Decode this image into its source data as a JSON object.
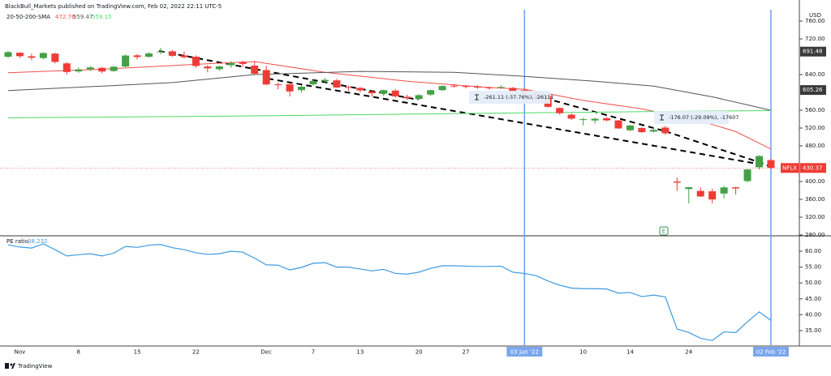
{
  "attribution": "BlackBull_Markets published on TradingView.com, Feb 02, 2022 22:11 UTC-5",
  "brand": "TradingView",
  "chart_data": [
    {
      "type": "candlestick",
      "symbol": "NFLX",
      "y_axis_unit": "USD",
      "indicator": "20-50-200-SMA",
      "categories": [
        null,
        "Nov",
        null,
        null,
        null,
        null,
        "8",
        null,
        null,
        null,
        null,
        "15",
        null,
        null,
        null,
        null,
        "22",
        null,
        null,
        null,
        null,
        null,
        "Dec",
        null,
        null,
        null,
        "7",
        null,
        null,
        null,
        "13",
        null,
        null,
        null,
        null,
        "20",
        null,
        null,
        null,
        "27",
        null,
        null,
        null,
        null,
        "03 Jan '22",
        null,
        null,
        null,
        null,
        "10",
        null,
        null,
        null,
        "14",
        null,
        null,
        null,
        null,
        "24",
        null,
        null,
        null,
        null,
        null,
        null,
        "02 Feb '22"
      ],
      "open": [
        680,
        689,
        681,
        677,
        687,
        665,
        647,
        652,
        655,
        648,
        658,
        683,
        680,
        690,
        692,
        683,
        680,
        658,
        652,
        661,
        668,
        660,
        650,
        618,
        618,
        605,
        618,
        625,
        627,
        612,
        610,
        602,
        597,
        604,
        590,
        585,
        595,
        605,
        615,
        614,
        613,
        611,
        611,
        610,
        605,
        599,
        592,
        565,
        550,
        538,
        537,
        542,
        537,
        515,
        520,
        512,
        521,
        400,
        383,
        379,
        378,
        373,
        387,
        401,
        432,
        448
      ],
      "high": [
        693,
        690,
        687,
        690,
        689,
        668,
        656,
        659,
        657,
        659,
        685,
        686,
        690,
        700,
        695,
        692,
        683,
        661,
        660,
        670,
        671,
        670,
        660,
        622,
        621,
        616,
        630,
        632,
        630,
        615,
        612,
        605,
        606,
        607,
        595,
        596,
        606,
        616,
        618,
        616,
        616,
        613,
        616,
        612,
        609,
        600,
        593,
        566,
        553,
        543,
        543,
        544,
        538,
        527,
        522,
        521,
        525,
        409,
        388,
        387,
        384,
        390,
        388,
        428,
        459,
        451
      ],
      "low": [
        677,
        677,
        672,
        674,
        665,
        640,
        644,
        648,
        643,
        646,
        656,
        674,
        678,
        686,
        680,
        676,
        655,
        645,
        648,
        655,
        657,
        640,
        616,
        607,
        591,
        599,
        615,
        620,
        610,
        603,
        600,
        590,
        592,
        588,
        583,
        582,
        592,
        603,
        611,
        609,
        608,
        606,
        608,
        600,
        592,
        581,
        566,
        550,
        538,
        526,
        530,
        535,
        518,
        513,
        509,
        510,
        505,
        379,
        351,
        365,
        351,
        362,
        371,
        398,
        427,
        428
      ],
      "close": [
        690.31,
        681.17,
        677.72,
        688.29,
        668.4,
        645.72,
        651.45,
        655.99,
        646.91,
        657.58,
        682.61,
        679.33,
        687.4,
        691.69,
        682.02,
        678.8,
        659.2,
        654.06,
        658.29,
        665.64,
        663.84,
        641.9,
        617.77,
        616.47,
        602.13,
        612.69,
        625.58,
        628.08,
        611.0,
        611.66,
        604.56,
        597.99,
        605.04,
        591.06,
        586.73,
        593.74,
        604.92,
        614.24,
        614.09,
        613.12,
        610.71,
        610.54,
        612.09,
        602.44,
        597.37,
        591.15,
        567.52,
        553.29,
        541.06,
        539.85,
        540.84,
        537.22,
        519.2,
        525.69,
        510.8,
        515.86,
        508.25,
        397.5,
        387.15,
        366.42,
        359.7,
        386.7,
        384.36,
        427.14,
        457.13,
        430.37
      ],
      "up_color": "#43a047",
      "down_color": "#ef3b36",
      "series": [
        {
          "color": "#f0504a",
          "x": [
            0,
            8,
            16,
            21,
            27,
            34,
            41,
            44,
            49,
            54,
            59,
            62,
            65
          ],
          "values": [
            644,
            652,
            663,
            669,
            645,
            625,
            611,
            607,
            582,
            563,
            536,
            512,
            472.76
          ]
        },
        {
          "color": "#555555",
          "x": [
            0,
            8,
            14,
            21,
            30,
            38,
            44,
            50,
            55,
            60,
            63,
            65
          ],
          "values": [
            604,
            614,
            622,
            640,
            647,
            645,
            636,
            625,
            614,
            590,
            572,
            559.47
          ]
        },
        {
          "color": "#4cd964",
          "x": [
            0,
            20,
            40,
            55,
            65
          ],
          "values": [
            543,
            547,
            553,
            557,
            559.15
          ]
        }
      ],
      "price_markers": [
        691.48,
        605.26
      ],
      "vertical_lines_at": [
        44,
        65
      ],
      "annotations": [
        "-261.11 (-37.76%), -26111",
        "-176.07 (-29.09%), -17607"
      ],
      "earnings_marker": "E",
      "ylim": [
        280,
        760
      ],
      "yticks": [
        {
          "value": 280,
          "label": "280.00"
        },
        {
          "value": 320,
          "label": "320.00"
        },
        {
          "value": 360,
          "label": "360.00"
        },
        {
          "value": 400,
          "label": "400.00"
        },
        {
          "value": 480,
          "label": "480.00"
        },
        {
          "value": 520,
          "label": "520.00"
        },
        {
          "value": 560,
          "label": "560.00"
        },
        {
          "value": 640,
          "label": "640.00"
        },
        {
          "value": 720,
          "label": "720.00"
        },
        {
          "value": 760,
          "label": "760.00"
        }
      ],
      "grid": false
    },
    {
      "type": "line",
      "title": "PE ratio",
      "color": "#3d9be0",
      "values": [
        62.0,
        61.3,
        61.0,
        62.3,
        60.5,
        58.5,
        58.9,
        59.2,
        58.5,
        59.4,
        61.5,
        61.2,
        61.9,
        62.1,
        61.1,
        60.5,
        59.5,
        59.0,
        59.2,
        60.0,
        59.7,
        57.8,
        55.7,
        55.6,
        54.1,
        54.9,
        56.2,
        56.4,
        55.0,
        55.0,
        54.4,
        53.8,
        54.3,
        53.0,
        52.8,
        53.4,
        54.6,
        55.4,
        55.4,
        55.3,
        55.2,
        55.2,
        55.3,
        53.4,
        53.0,
        52.3,
        50.6,
        49.3,
        48.4,
        48.2,
        48.2,
        48.1,
        46.8,
        47.0,
        45.7,
        46.2,
        45.6,
        35.5,
        34.4,
        32.6,
        31.9,
        34.6,
        34.4,
        37.8,
        40.9,
        38.232
      ],
      "ylim": [
        30,
        65
      ],
      "yticks": [
        {
          "value": 35,
          "label": "35.00"
        },
        {
          "value": 40,
          "label": "40.00"
        },
        {
          "value": 45,
          "label": "45.00"
        },
        {
          "value": 50,
          "label": "50.00"
        },
        {
          "value": 55,
          "label": "55.00"
        },
        {
          "value": 60,
          "label": "60.00"
        }
      ],
      "grid": false
    }
  ]
}
